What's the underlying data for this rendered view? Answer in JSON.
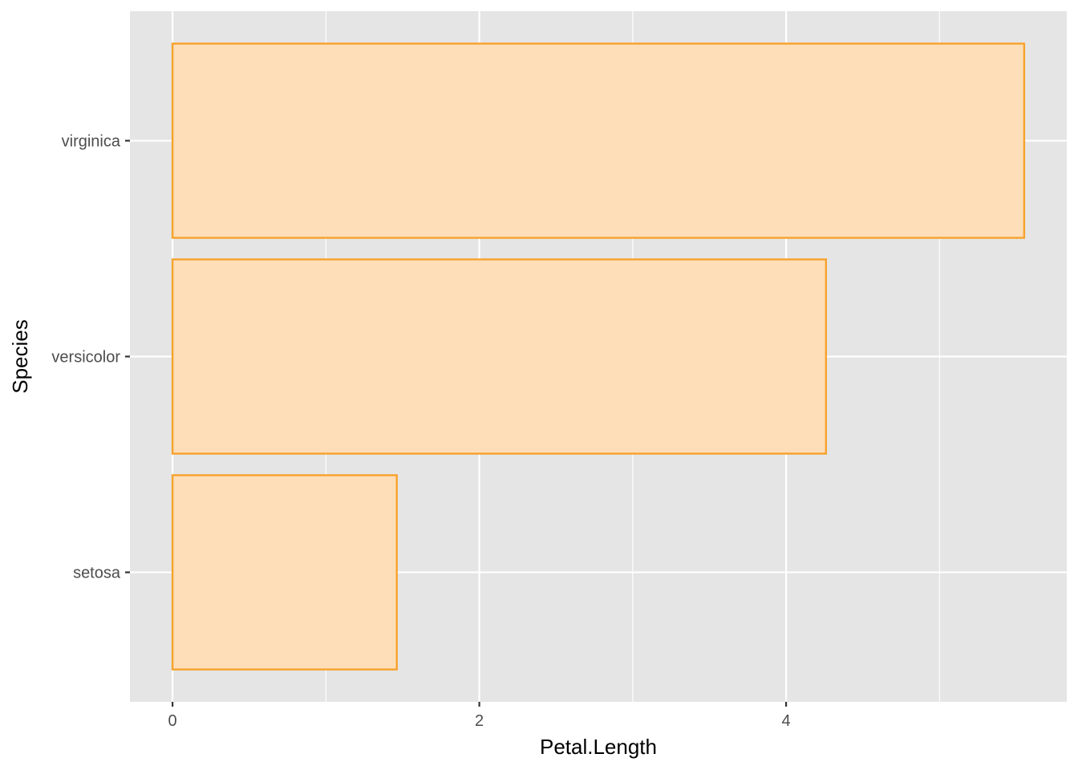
{
  "chart_data": {
    "type": "bar",
    "orientation": "horizontal",
    "categories": [
      "setosa",
      "versicolor",
      "virginica"
    ],
    "values": [
      1.462,
      4.26,
      5.552
    ],
    "xlabel": "Petal.Length",
    "ylabel": "Species",
    "xlim": [
      -0.2776,
      5.8296
    ],
    "x_ticks": [
      0,
      2,
      4
    ],
    "x_tick_labels": [
      "0",
      "2",
      "4"
    ],
    "x_minor_ticks": [
      1,
      3,
      5
    ],
    "grid": true,
    "legend": "none",
    "colors": {
      "panel_background": "#e5e5e5",
      "grid": "#ffffff",
      "bar_fill": "#fddeb9",
      "bar_outline": "#f7a22b",
      "tick_mark": "#333333"
    }
  }
}
